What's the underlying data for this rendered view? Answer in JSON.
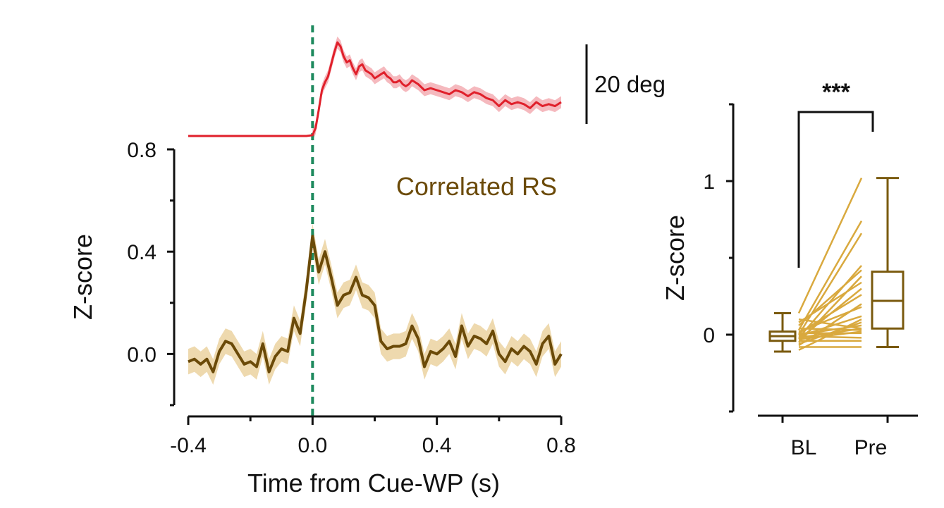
{
  "colors": {
    "angle_line": "#E0202B",
    "angle_band": "#F5B9BE",
    "rs_line": "#6B4A08",
    "rs_band": "#EED9AE",
    "cue_marker": "#1E8A5E",
    "pair_lines": "#D9A93E",
    "box": "#7A5A0E",
    "axis": "#111111",
    "label_accent": "#6B4A08"
  },
  "chart_data": [
    {
      "type": "line",
      "panel": "time-course",
      "title": "",
      "annotation": "Correlated RS",
      "xlabel": "Time from Cue-WP (s)",
      "ylabel": "Z-score",
      "xlim": [
        -0.4,
        0.8
      ],
      "ylim": [
        -0.2,
        0.8
      ],
      "x_ticks": [
        -0.4,
        0.0,
        0.4,
        0.8
      ],
      "x_tick_labels": [
        "-0.4",
        "0.0",
        "0.4",
        "0.8"
      ],
      "y_ticks": [
        0.0,
        0.4,
        0.8
      ],
      "y_tick_labels": [
        "0.0",
        "0.4",
        "0.8"
      ],
      "event_marker_x": 0.0,
      "series": [
        {
          "name": "Correlated RS",
          "x": [
            -0.4,
            -0.38,
            -0.36,
            -0.34,
            -0.32,
            -0.3,
            -0.28,
            -0.26,
            -0.24,
            -0.22,
            -0.2,
            -0.18,
            -0.16,
            -0.14,
            -0.12,
            -0.1,
            -0.08,
            -0.06,
            -0.04,
            -0.02,
            0.0,
            0.02,
            0.04,
            0.06,
            0.08,
            0.1,
            0.12,
            0.14,
            0.16,
            0.18,
            0.2,
            0.22,
            0.24,
            0.26,
            0.28,
            0.3,
            0.32,
            0.34,
            0.36,
            0.38,
            0.4,
            0.42,
            0.44,
            0.46,
            0.48,
            0.5,
            0.52,
            0.54,
            0.56,
            0.58,
            0.6,
            0.62,
            0.64,
            0.66,
            0.68,
            0.7,
            0.72,
            0.74,
            0.76,
            0.78,
            0.8
          ],
          "y": [
            -0.03,
            -0.02,
            -0.04,
            -0.02,
            -0.07,
            0.01,
            0.05,
            0.04,
            0.0,
            -0.04,
            -0.03,
            -0.05,
            0.04,
            -0.07,
            -0.01,
            0.02,
            0.01,
            0.14,
            0.08,
            0.25,
            0.46,
            0.32,
            0.4,
            0.3,
            0.19,
            0.23,
            0.24,
            0.3,
            0.23,
            0.22,
            0.19,
            0.05,
            0.02,
            0.03,
            0.03,
            0.04,
            0.11,
            0.06,
            -0.05,
            0.01,
            0.0,
            0.02,
            0.05,
            -0.01,
            0.11,
            0.03,
            0.07,
            0.06,
            0.04,
            0.09,
            0.0,
            -0.03,
            0.02,
            0.0,
            0.03,
            0.01,
            -0.04,
            0.04,
            0.07,
            -0.04,
            0.0
          ],
          "band": 0.05
        },
        {
          "name": "Angle (20 deg scale)",
          "unit": "deg",
          "x": [
            -0.4,
            -0.3,
            -0.2,
            -0.1,
            -0.02,
            0.0,
            0.01,
            0.02,
            0.03,
            0.04,
            0.05,
            0.06,
            0.07,
            0.08,
            0.09,
            0.1,
            0.11,
            0.12,
            0.13,
            0.14,
            0.15,
            0.16,
            0.17,
            0.18,
            0.19,
            0.2,
            0.21,
            0.22,
            0.23,
            0.24,
            0.25,
            0.26,
            0.27,
            0.28,
            0.29,
            0.3,
            0.31,
            0.32,
            0.34,
            0.36,
            0.38,
            0.4,
            0.42,
            0.44,
            0.46,
            0.48,
            0.5,
            0.52,
            0.54,
            0.56,
            0.58,
            0.6,
            0.62,
            0.64,
            0.66,
            0.68,
            0.7,
            0.72,
            0.74,
            0.76,
            0.78,
            0.8
          ],
          "y": [
            0.0,
            0.0,
            0.0,
            0.0,
            0.0,
            0.2,
            2.0,
            6.5,
            11.5,
            13.5,
            15.0,
            18.0,
            21.0,
            23.5,
            22.5,
            20.0,
            18.5,
            19.0,
            17.0,
            15.5,
            17.5,
            18.0,
            16.5,
            16.0,
            15.5,
            14.5,
            15.0,
            15.5,
            16.0,
            15.0,
            14.5,
            13.5,
            13.5,
            14.0,
            13.0,
            12.5,
            13.0,
            14.0,
            13.0,
            11.5,
            12.0,
            11.5,
            11.0,
            10.5,
            11.5,
            11.0,
            10.0,
            11.0,
            10.5,
            9.5,
            9.0,
            7.5,
            9.0,
            8.0,
            8.5,
            8.0,
            7.0,
            8.5,
            7.5,
            8.0,
            7.5,
            8.5
          ],
          "band": 1.5,
          "scale_bar_label": "20 deg",
          "scale_bar_value": 20
        }
      ]
    },
    {
      "type": "box",
      "panel": "summary",
      "ylabel": "Z-score",
      "categories": [
        "BL",
        "Pre"
      ],
      "ylim": [
        -0.5,
        1.5
      ],
      "y_ticks": [
        0,
        1
      ],
      "y_tick_labels": [
        "0",
        "1"
      ],
      "significance": "***",
      "boxes": [
        {
          "name": "BL",
          "min": -0.11,
          "q1": -0.04,
          "median": -0.01,
          "q3": 0.02,
          "max": 0.14
        },
        {
          "name": "Pre",
          "min": -0.08,
          "q1": 0.04,
          "median": 0.22,
          "q3": 0.41,
          "max": 1.02
        }
      ],
      "pairs": [
        [
          -0.1,
          0.1
        ],
        [
          -0.08,
          -0.08
        ],
        [
          -0.07,
          0.2
        ],
        [
          -0.06,
          0.08
        ],
        [
          -0.05,
          0.38
        ],
        [
          -0.04,
          -0.04
        ],
        [
          -0.03,
          0.02
        ],
        [
          -0.03,
          0.3
        ],
        [
          -0.02,
          0.04
        ],
        [
          -0.02,
          0.45
        ],
        [
          -0.01,
          0.12
        ],
        [
          -0.01,
          -0.02
        ],
        [
          0.0,
          0.66
        ],
        [
          0.0,
          0.06
        ],
        [
          0.01,
          0.26
        ],
        [
          0.01,
          0.01
        ],
        [
          0.02,
          0.18
        ],
        [
          0.03,
          0.74
        ],
        [
          0.04,
          0.03
        ],
        [
          0.06,
          0.42
        ],
        [
          0.08,
          0.34
        ],
        [
          0.1,
          0.04
        ],
        [
          0.14,
          1.02
        ]
      ]
    }
  ]
}
